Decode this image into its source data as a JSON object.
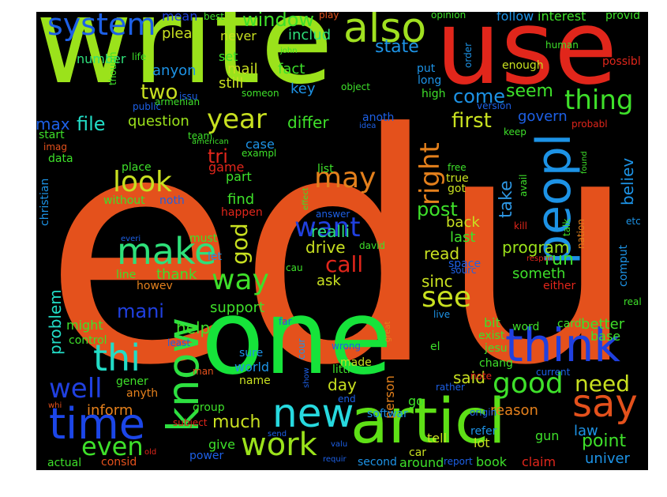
{
  "words": [
    {
      "text": "edu",
      "color": "#e4511c"
    },
    {
      "text": "write",
      "color": "#9be21b"
    },
    {
      "text": "use",
      "color": "#e1261b"
    },
    {
      "text": "one",
      "color": "#16e33a"
    },
    {
      "text": "articl",
      "color": "#5ee016"
    },
    {
      "text": "peopl",
      "color": "#1d93e6"
    },
    {
      "text": "think",
      "color": "#2040e0"
    },
    {
      "text": "know",
      "color": "#2de040"
    },
    {
      "text": "time",
      "color": "#1c46e8"
    },
    {
      "text": "new",
      "color": "#27d9df"
    },
    {
      "text": "say",
      "color": "#e4511c"
    },
    {
      "text": "also",
      "color": "#a0e020"
    },
    {
      "text": "make",
      "color": "#2ee07a"
    },
    {
      "text": "system",
      "color": "#1d60e6"
    },
    {
      "text": "thi",
      "color": "#22dcc6"
    },
    {
      "text": "well",
      "color": "#2040e0"
    },
    {
      "text": "good",
      "color": "#3ee02a"
    },
    {
      "text": "work",
      "color": "#9be21b"
    },
    {
      "text": "way",
      "color": "#3ee02a"
    },
    {
      "text": "year",
      "color": "#c8e020"
    },
    {
      "text": "want",
      "color": "#2040e0"
    },
    {
      "text": "may",
      "color": "#e4801c"
    },
    {
      "text": "look",
      "color": "#c8e020"
    },
    {
      "text": "see",
      "color": "#c8e020"
    },
    {
      "text": "thing",
      "color": "#3ee02a"
    },
    {
      "text": "right",
      "color": "#e4801c"
    },
    {
      "text": "even",
      "color": "#3ee02a"
    },
    {
      "text": "need",
      "color": "#c8e020"
    },
    {
      "text": "window",
      "color": "#3ee02a"
    },
    {
      "text": "god",
      "color": "#c8e020"
    },
    {
      "text": "problem",
      "color": "#22dcc6"
    },
    {
      "text": "post",
      "color": "#3ee02a"
    },
    {
      "text": "call",
      "color": "#e1261b"
    },
    {
      "text": "mani",
      "color": "#2040e0"
    },
    {
      "text": "first",
      "color": "#c8e020"
    },
    {
      "text": "much",
      "color": "#c8e020"
    },
    {
      "text": "point",
      "color": "#3ee02a"
    },
    {
      "text": "file",
      "color": "#22dcc6"
    },
    {
      "text": "two",
      "color": "#c8e020"
    },
    {
      "text": "take",
      "color": "#2d95e0"
    },
    {
      "text": "believ",
      "color": "#1d93e6"
    },
    {
      "text": "state",
      "color": "#1d93e6"
    },
    {
      "text": "come",
      "color": "#1d93e6"
    },
    {
      "text": "seem",
      "color": "#3ee02a"
    },
    {
      "text": "tri",
      "color": "#e1261b"
    },
    {
      "text": "question",
      "color": "#9be21b"
    },
    {
      "text": "max",
      "color": "#1d60e6"
    },
    {
      "text": "differ",
      "color": "#3ee02a"
    },
    {
      "text": "run",
      "color": "#3ee02a"
    },
    {
      "text": "program",
      "color": "#9be21b"
    },
    {
      "text": "realli",
      "color": "#2ee07a"
    },
    {
      "text": "read",
      "color": "#c8e020"
    },
    {
      "text": "sinc",
      "color": "#c8e020"
    },
    {
      "text": "reason",
      "color": "#e4801c"
    },
    {
      "text": "help",
      "color": "#3ee02a"
    },
    {
      "text": "inform",
      "color": "#e4801c"
    },
    {
      "text": "support",
      "color": "#3ee02a"
    },
    {
      "text": "said",
      "color": "#c8e020"
    },
    {
      "text": "day",
      "color": "#c8e020"
    },
    {
      "text": "better",
      "color": "#3ee02a"
    },
    {
      "text": "law",
      "color": "#1d93e6"
    },
    {
      "text": "univer",
      "color": "#1d93e6"
    },
    {
      "text": "govern",
      "color": "#1d60e6"
    },
    {
      "text": "someth",
      "color": "#3ee02a"
    },
    {
      "text": "drive",
      "color": "#c8e020"
    },
    {
      "text": "last",
      "color": "#3ee02a"
    },
    {
      "text": "back",
      "color": "#c8e020"
    },
    {
      "text": "find",
      "color": "#3ee02a"
    },
    {
      "text": "ask",
      "color": "#c8e020"
    },
    {
      "text": "thank",
      "color": "#3ee02a"
    },
    {
      "text": "anyon",
      "color": "#1d93e6"
    },
    {
      "text": "mail",
      "color": "#c8e020"
    },
    {
      "text": "fact",
      "color": "#3ee02a"
    },
    {
      "text": "key",
      "color": "#1d93e6"
    },
    {
      "text": "still",
      "color": "#c8e020"
    },
    {
      "text": "set",
      "color": "#3ee02a"
    },
    {
      "text": "includ",
      "color": "#2ee07a"
    },
    {
      "text": "never",
      "color": "#c8e020"
    },
    {
      "text": "plea",
      "color": "#c8e020"
    },
    {
      "text": "mean",
      "color": "#2040e0"
    },
    {
      "text": "number",
      "color": "#2ee07a"
    },
    {
      "text": "interest",
      "color": "#3ee02a"
    },
    {
      "text": "follow",
      "color": "#1d93e6"
    },
    {
      "text": "place",
      "color": "#3ee02a"
    },
    {
      "text": "part",
      "color": "#3ee02a"
    },
    {
      "text": "game",
      "color": "#e1261b"
    },
    {
      "text": "case",
      "color": "#1d93e6"
    },
    {
      "text": "happen",
      "color": "#e1261b"
    },
    {
      "text": "must",
      "color": "#3ee02a"
    },
    {
      "text": "let",
      "color": "#1d93e6"
    },
    {
      "text": "line",
      "color": "#3ee02a"
    },
    {
      "text": "howev",
      "color": "#e4801c"
    },
    {
      "text": "might",
      "color": "#3ee02a"
    },
    {
      "text": "control",
      "color": "#3ee02a"
    },
    {
      "text": "gener",
      "color": "#3ee02a"
    },
    {
      "text": "anyth",
      "color": "#e4801c"
    },
    {
      "text": "group",
      "color": "#3ee02a"
    },
    {
      "text": "give",
      "color": "#3ee02a"
    },
    {
      "text": "power",
      "color": "#1d60e6"
    },
    {
      "text": "world",
      "color": "#1d93e6"
    },
    {
      "text": "sure",
      "color": "#1d93e6"
    },
    {
      "text": "name",
      "color": "#c8e020"
    },
    {
      "text": "made",
      "color": "#c8e020"
    },
    {
      "text": "littl",
      "color": "#3ee02a"
    },
    {
      "text": "person",
      "color": "#e4801c"
    },
    {
      "text": "go",
      "color": "#3ee02a"
    },
    {
      "text": "tell",
      "color": "#c8e020"
    },
    {
      "text": "car",
      "color": "#c8e020"
    },
    {
      "text": "lot",
      "color": "#c8e020"
    },
    {
      "text": "refer",
      "color": "#1d93e6"
    },
    {
      "text": "around",
      "color": "#3ee02a"
    },
    {
      "text": "book",
      "color": "#3ee02a"
    },
    {
      "text": "claim",
      "color": "#e1261b"
    },
    {
      "text": "gun",
      "color": "#3ee02a"
    },
    {
      "text": "exist",
      "color": "#3ee02a"
    },
    {
      "text": "chang",
      "color": "#3ee02a"
    },
    {
      "text": "bit",
      "color": "#3ee02a"
    },
    {
      "text": "word",
      "color": "#3ee02a"
    },
    {
      "text": "base",
      "color": "#3ee02a"
    },
    {
      "text": "card",
      "color": "#3ee02a"
    },
    {
      "text": "jesu",
      "color": "#3ee02a"
    },
    {
      "text": "softwar",
      "color": "#1d93e6"
    },
    {
      "text": "second",
      "color": "#1d93e6"
    },
    {
      "text": "consid",
      "color": "#e4511c"
    },
    {
      "text": "actual",
      "color": "#3ee02a"
    },
    {
      "text": "start",
      "color": "#3ee02a"
    },
    {
      "text": "data",
      "color": "#3ee02a"
    },
    {
      "text": "christian",
      "color": "#1d93e6"
    },
    {
      "text": "without",
      "color": "#3ee02a"
    },
    {
      "text": "noth",
      "color": "#1d60e6"
    },
    {
      "text": "list",
      "color": "#3ee02a"
    },
    {
      "text": "true",
      "color": "#c8e020"
    },
    {
      "text": "got",
      "color": "#c8e020"
    },
    {
      "text": "free",
      "color": "#3ee02a"
    },
    {
      "text": "avail",
      "color": "#3ee02a"
    },
    {
      "text": "comput",
      "color": "#1d93e6"
    },
    {
      "text": "etc",
      "color": "#1d93e6"
    },
    {
      "text": "talk",
      "color": "#3ee02a"
    },
    {
      "text": "nation",
      "color": "#e4801c"
    },
    {
      "text": "kill",
      "color": "#e1261b"
    },
    {
      "text": "real",
      "color": "#3ee02a"
    },
    {
      "text": "either",
      "color": "#e1261b"
    },
    {
      "text": "live",
      "color": "#1d93e6"
    },
    {
      "text": "space",
      "color": "#1d60e6"
    },
    {
      "text": "sourc",
      "color": "#1d60e6"
    },
    {
      "text": "cau",
      "color": "#3ee02a"
    },
    {
      "text": "david",
      "color": "#3ee02a"
    },
    {
      "text": "best",
      "color": "#3ee02a"
    },
    {
      "text": "play",
      "color": "#e4511c"
    },
    {
      "text": "opinion",
      "color": "#3ee02a"
    },
    {
      "text": "provid",
      "color": "#3ee02a"
    },
    {
      "text": "human",
      "color": "#3ee02a"
    },
    {
      "text": "possibl",
      "color": "#e1261b"
    },
    {
      "text": "enough",
      "color": "#c8e020"
    },
    {
      "text": "order",
      "color": "#1d93e6"
    },
    {
      "text": "put",
      "color": "#1d93e6"
    },
    {
      "text": "long",
      "color": "#1d93e6"
    },
    {
      "text": "high",
      "color": "#3ee02a"
    },
    {
      "text": "object",
      "color": "#3ee02a"
    },
    {
      "text": "john",
      "color": "#3ee02a"
    },
    {
      "text": "life",
      "color": "#3ee02a"
    },
    {
      "text": "though",
      "color": "#3ee02a"
    },
    {
      "text": "armenian",
      "color": "#3ee02a"
    },
    {
      "text": "issu",
      "color": "#1d60e6"
    },
    {
      "text": "someon",
      "color": "#3ee02a"
    },
    {
      "text": "public",
      "color": "#1d60e6"
    },
    {
      "text": "anoth",
      "color": "#1d60e6"
    },
    {
      "text": "idea",
      "color": "#1d60e6"
    },
    {
      "text": "version",
      "color": "#1d60e6"
    },
    {
      "text": "keep",
      "color": "#3ee02a"
    },
    {
      "text": "probabl",
      "color": "#e1261b"
    },
    {
      "text": "team",
      "color": "#3ee02a"
    },
    {
      "text": "american",
      "color": "#3ee02a"
    },
    {
      "text": "exampl",
      "color": "#3ee02a"
    },
    {
      "text": "imag",
      "color": "#e4511c"
    },
    {
      "text": "everi",
      "color": "#1d60e6"
    },
    {
      "text": "effect",
      "color": "#3ee02a"
    },
    {
      "text": "answer",
      "color": "#1d60e6"
    },
    {
      "text": "found",
      "color": "#3ee02a"
    },
    {
      "text": "respon",
      "color": "#e1261b"
    },
    {
      "text": "far",
      "color": "#1d60e6"
    },
    {
      "text": "least",
      "color": "#1d60e6"
    },
    {
      "text": "man",
      "color": "#e4511c"
    },
    {
      "text": "wrong",
      "color": "#1d60e6"
    },
    {
      "text": "great",
      "color": "#e4801c"
    },
    {
      "text": "cour",
      "color": "#1d93e6"
    },
    {
      "text": "show",
      "color": "#1d60e6"
    },
    {
      "text": "end",
      "color": "#1d60e6"
    },
    {
      "text": "el",
      "color": "#3ee02a"
    },
    {
      "text": "note",
      "color": "#e1261b"
    },
    {
      "text": "rather",
      "color": "#1d60e6"
    },
    {
      "text": "current",
      "color": "#1d60e6"
    },
    {
      "text": "origin",
      "color": "#1d60e6"
    },
    {
      "text": "whi",
      "color": "#e4511c"
    },
    {
      "text": "subject",
      "color": "#e1261b"
    },
    {
      "text": "old",
      "color": "#e1261b"
    },
    {
      "text": "send",
      "color": "#1d60e6"
    },
    {
      "text": "valu",
      "color": "#1d60e6"
    },
    {
      "text": "requir",
      "color": "#1d60e6"
    },
    {
      "text": "report",
      "color": "#1d60e6"
    }
  ]
}
